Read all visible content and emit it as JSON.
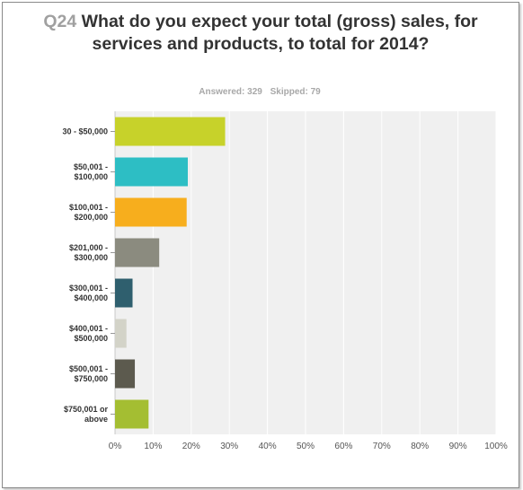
{
  "header": {
    "question_number": "Q24",
    "question_text": "What do you expect your total (gross) sales, for services and products, to total for 2014?",
    "answered": "Answered: 329",
    "skipped": "Skipped: 79"
  },
  "chart_data": {
    "type": "bar",
    "orientation": "horizontal",
    "title": "Q24 What do you expect your total (gross) sales, for services and products, to total for 2014?",
    "categories": [
      [
        "30 - $50,000"
      ],
      [
        "$50,001 -",
        "$100,000"
      ],
      [
        "$100,001 -",
        "$200,000"
      ],
      [
        "$201,000 -",
        "$300,000"
      ],
      [
        "$300,001 -",
        "$400,000"
      ],
      [
        "$400,001 -",
        "$500,000"
      ],
      [
        "$500,001 -",
        "$750,000"
      ],
      [
        "$750,001 or",
        "above"
      ]
    ],
    "values": [
      28.9,
      19.1,
      18.8,
      11.6,
      4.6,
      3.0,
      5.2,
      8.8
    ],
    "colors": [
      "#c7d22a",
      "#2dbec4",
      "#f7ae1d",
      "#8b8b7f",
      "#2f5f6e",
      "#d3d3c8",
      "#5c5a4e",
      "#a4be32"
    ],
    "xlim": [
      0,
      100
    ],
    "xticks": [
      "0%",
      "10%",
      "20%",
      "30%",
      "40%",
      "50%",
      "60%",
      "70%",
      "80%",
      "90%",
      "100%"
    ],
    "grid": true
  }
}
